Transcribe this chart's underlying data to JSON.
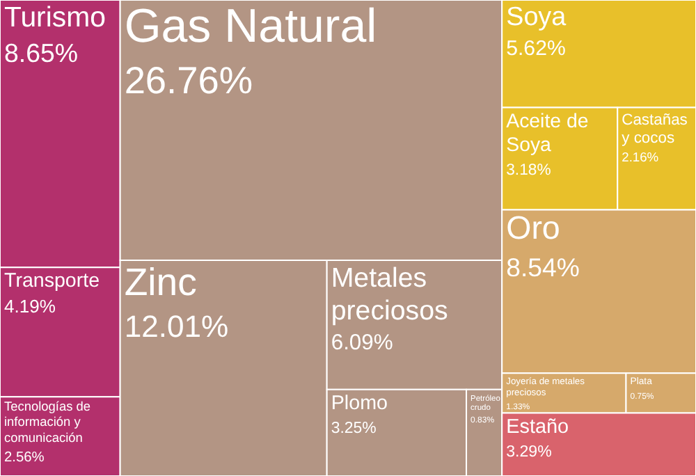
{
  "chart_data": {
    "type": "other",
    "categories": [
      "Turismo",
      "Transporte",
      "Tecnologías de información y comunicación",
      "Gas Natural",
      "Zinc",
      "Metales preciosos",
      "Plomo",
      "Petróleo crudo",
      "Soya",
      "Aceite de Soya",
      "Castañas y cocos",
      "Oro",
      "Joyería de metales preciosos",
      "Plata",
      "Estaño"
    ],
    "values": [
      8.65,
      4.19,
      2.56,
      26.76,
      12.01,
      6.09,
      3.25,
      0.83,
      5.62,
      3.18,
      2.16,
      8.54,
      1.33,
      0.75,
      3.29
    ],
    "value_labels": [
      "8.65%",
      "4.19%",
      "2.56%",
      "26.76%",
      "12.01%",
      "6.09%",
      "3.25%",
      "0.83%",
      "5.62%",
      "3.18%",
      "2.16%",
      "8.54%",
      "1.33%",
      "0.75%",
      "3.29%"
    ],
    "colors": [
      "#b3306c",
      "#b3306c",
      "#b3306c",
      "#b39584",
      "#b39584",
      "#b39584",
      "#b39584",
      "#b39584",
      "#e8c02a",
      "#e8c02a",
      "#e8c02a",
      "#d6a96b",
      "#d6a96b",
      "#d6a96b",
      "#d9636c"
    ]
  }
}
